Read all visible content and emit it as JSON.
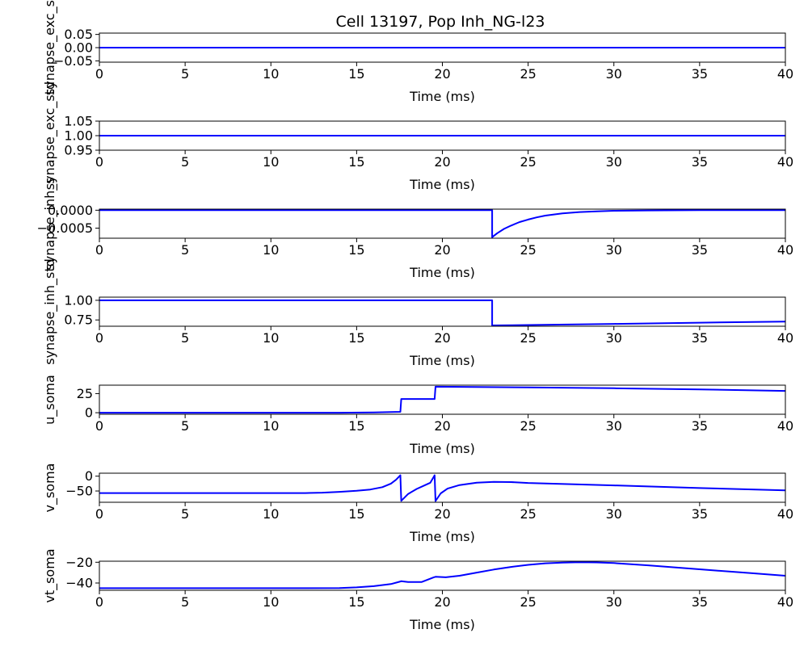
{
  "title": "Cell 13197, Pop Inh_NG-l23",
  "colors": {
    "line": "#0000ff",
    "axes": "#000000",
    "background": "#ffffff"
  },
  "chart_data": [
    {
      "type": "line",
      "ylabel": "synapse_exc_s",
      "xlabel": "Time (ms)",
      "xlim": [
        0,
        40
      ],
      "ylim": [
        -0.055,
        0.055
      ],
      "x_ticks": [
        "0",
        "5",
        "10",
        "15",
        "20",
        "25",
        "30",
        "35",
        "40"
      ],
      "y_ticks": [
        {
          "v": 0.05,
          "label": "0.05"
        },
        {
          "v": 0.0,
          "label": "0.00"
        },
        {
          "v": -0.05,
          "label": "−0.05"
        }
      ],
      "series": [
        {
          "x": [
            0,
            40
          ],
          "y": [
            0,
            0
          ]
        }
      ]
    },
    {
      "type": "line",
      "ylabel": "synapse_exc_std",
      "xlabel": "Time (ms)",
      "xlim": [
        0,
        40
      ],
      "ylim": [
        0.95,
        1.05
      ],
      "x_ticks": [
        "0",
        "5",
        "10",
        "15",
        "20",
        "25",
        "30",
        "35",
        "40"
      ],
      "y_ticks": [
        {
          "v": 1.05,
          "label": "1.05"
        },
        {
          "v": 1.0,
          "label": "1.00"
        },
        {
          "v": 0.95,
          "label": "0.95"
        }
      ],
      "series": [
        {
          "x": [
            0,
            40
          ],
          "y": [
            1.0,
            1.0
          ]
        }
      ]
    },
    {
      "type": "line",
      "ylabel": "synapse_inh_s",
      "xlabel": "Time (ms)",
      "xlim": [
        0,
        40
      ],
      "ylim": [
        -0.00078,
        3e-05
      ],
      "x_ticks": [
        "0",
        "5",
        "10",
        "15",
        "20",
        "25",
        "30",
        "35",
        "40"
      ],
      "y_ticks": [
        {
          "v": 0.0,
          "label": "0.0000"
        },
        {
          "v": -0.0005,
          "label": "−0.0005"
        }
      ],
      "series": [
        {
          "x": [
            0,
            22.9,
            22.9,
            23.2,
            23.6,
            24.0,
            24.5,
            25.0,
            25.5,
            26.0,
            27.0,
            28.0,
            29.0,
            30.0,
            32.0,
            35.0,
            40.0
          ],
          "y": [
            0,
            0,
            -0.00075,
            -0.00064,
            -0.00052,
            -0.00043,
            -0.00033,
            -0.00026,
            -0.0002,
            -0.00015,
            -9e-05,
            -5e-05,
            -3e-05,
            -1.5e-05,
            -5e-06,
            0,
            0
          ]
        }
      ]
    },
    {
      "type": "line",
      "ylabel": "synapse_inh_std",
      "xlabel": "Time (ms)",
      "xlim": [
        0,
        40
      ],
      "ylim": [
        0.67,
        1.04
      ],
      "x_ticks": [
        "0",
        "5",
        "10",
        "15",
        "20",
        "25",
        "30",
        "35",
        "40"
      ],
      "y_ticks": [
        {
          "v": 1.0,
          "label": "1.00"
        },
        {
          "v": 0.75,
          "label": "0.75"
        }
      ],
      "series": [
        {
          "x": [
            0,
            22.9,
            22.9,
            25,
            30,
            35,
            40
          ],
          "y": [
            1.0,
            1.0,
            0.68,
            0.685,
            0.7,
            0.715,
            0.73
          ]
        }
      ]
    },
    {
      "type": "line",
      "ylabel": "u_soma",
      "xlabel": "Time (ms)",
      "xlim": [
        0,
        40
      ],
      "ylim": [
        -2,
        36
      ],
      "x_ticks": [
        "0",
        "5",
        "10",
        "15",
        "20",
        "25",
        "30",
        "35",
        "40"
      ],
      "y_ticks": [
        {
          "v": 25,
          "label": "25"
        },
        {
          "v": 0,
          "label": "0"
        }
      ],
      "series": [
        {
          "x": [
            0,
            14,
            16,
            17.0,
            17.55,
            17.6,
            19.5,
            19.55,
            19.6,
            25,
            30,
            35,
            40
          ],
          "y": [
            0,
            0,
            0.3,
            0.8,
            1.2,
            18,
            18,
            18,
            34,
            33,
            32,
            30.5,
            28.5
          ]
        }
      ]
    },
    {
      "type": "line",
      "ylabel": "v_soma",
      "xlabel": "Time (ms)",
      "xlim": [
        0,
        40
      ],
      "ylim": [
        -88,
        10
      ],
      "x_ticks": [
        "0",
        "5",
        "10",
        "15",
        "20",
        "25",
        "30",
        "35",
        "40"
      ],
      "y_ticks": [
        {
          "v": 0,
          "label": "0"
        },
        {
          "v": -50,
          "label": "−50"
        }
      ],
      "series": [
        {
          "x": [
            0,
            12,
            13,
            14,
            15,
            15.8,
            16.5,
            17.0,
            17.3,
            17.55,
            17.6,
            18.0,
            18.5,
            19.0,
            19.3,
            19.55,
            19.6,
            19.9,
            20.3,
            21.0,
            22.0,
            23.0,
            24.0,
            25.0,
            30.0,
            35.0,
            40.0
          ],
          "y": [
            -57,
            -57,
            -55.5,
            -53,
            -49,
            -45,
            -37,
            -25,
            -12,
            3,
            -83,
            -60,
            -43,
            -30,
            -22,
            3,
            -84,
            -58,
            -42,
            -30,
            -22,
            -19,
            -20,
            -23,
            -31,
            -40,
            -48
          ]
        }
      ]
    },
    {
      "type": "line",
      "ylabel": "vt_soma",
      "xlabel": "Time (ms)",
      "xlim": [
        0,
        40
      ],
      "ylim": [
        -47,
        -19
      ],
      "x_ticks": [
        "0",
        "5",
        "10",
        "15",
        "20",
        "25",
        "30",
        "35",
        "40"
      ],
      "y_ticks": [
        {
          "v": -20,
          "label": "−20"
        },
        {
          "v": -40,
          "label": "−40"
        }
      ],
      "series": [
        {
          "x": [
            0,
            12,
            14,
            15,
            16,
            17,
            17.55,
            17.6,
            18.0,
            18.8,
            19.5,
            19.6,
            20.2,
            21,
            22,
            23,
            24,
            25,
            26,
            27,
            28,
            29,
            30,
            32,
            34,
            36,
            38,
            40
          ],
          "y": [
            -45,
            -45,
            -44.8,
            -44.2,
            -43,
            -41,
            -38.5,
            -38.2,
            -39,
            -39,
            -34.5,
            -34,
            -34.5,
            -33,
            -30,
            -27,
            -24.5,
            -22.5,
            -21,
            -20.3,
            -20,
            -20.2,
            -20.8,
            -23,
            -25.5,
            -28,
            -30.5,
            -33
          ]
        }
      ]
    }
  ]
}
